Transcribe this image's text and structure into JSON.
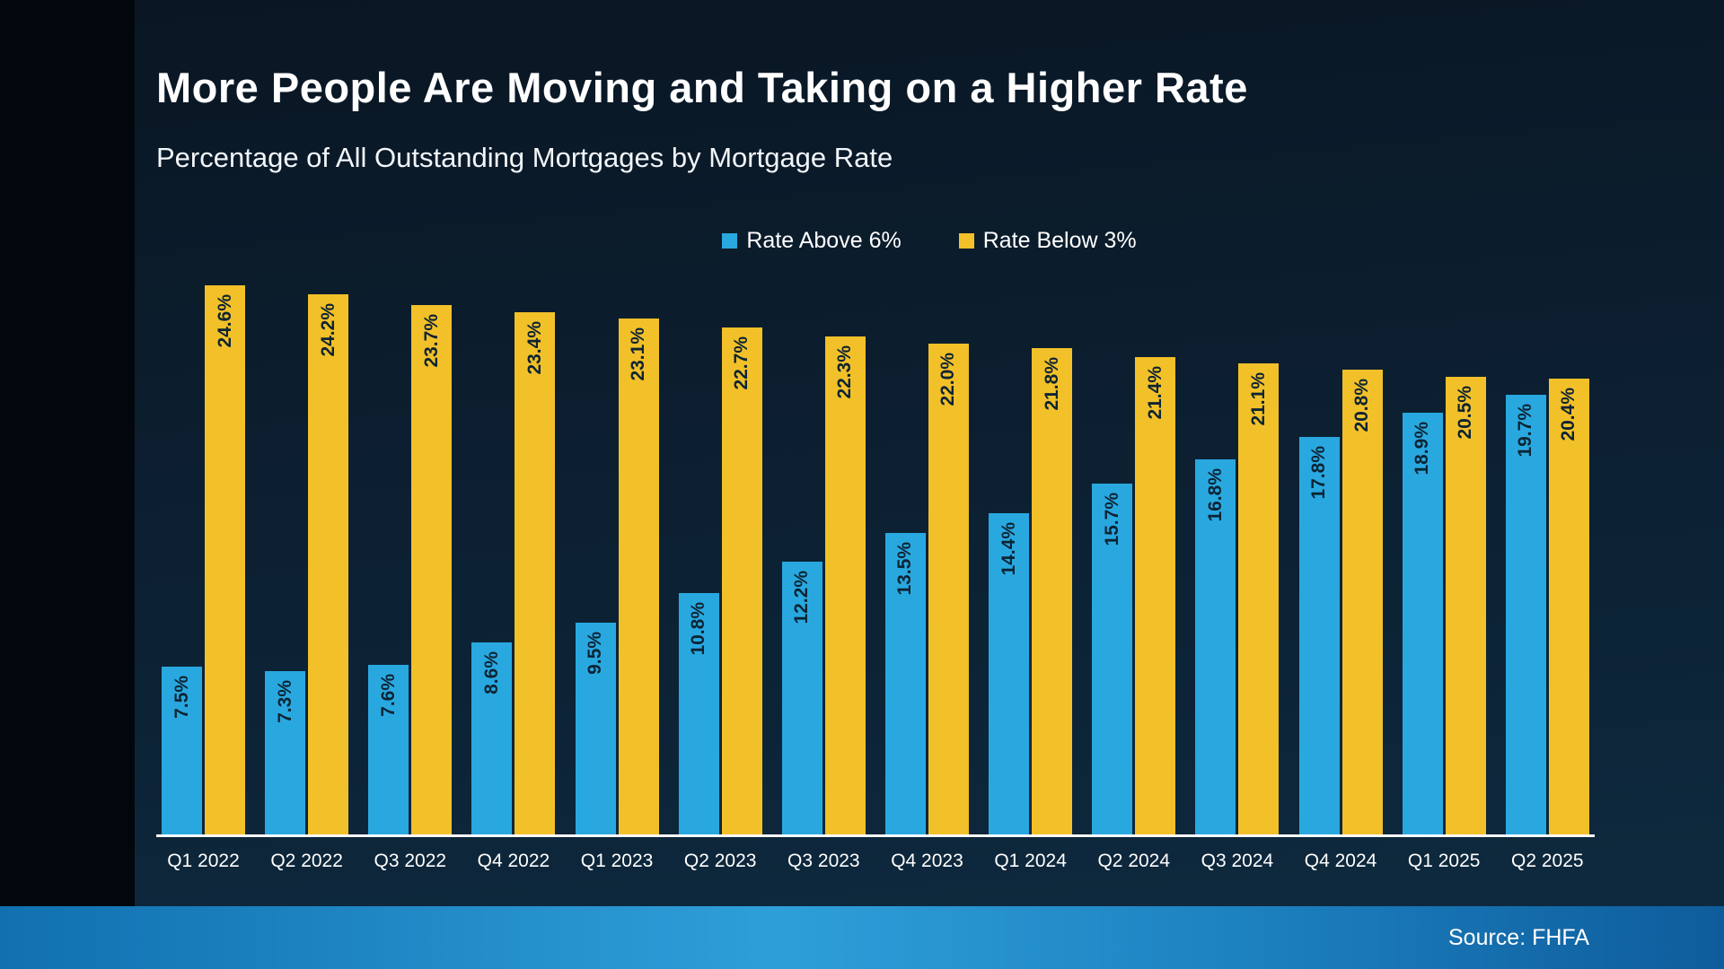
{
  "header": {
    "title": "More People Are Moving and Taking on a Higher Rate",
    "subtitle": "Percentage of All Outstanding Mortgages by Mortgage Rate"
  },
  "footer": {
    "source": "Source: FHFA"
  },
  "colors": {
    "rate_above_6": "#29a8e0",
    "rate_below_3": "#f2c029",
    "bar_value_text": "#0d2433",
    "background_top": "#0a1623",
    "background_bottom": "#0e2a40",
    "footer_band_left": "#1170b0",
    "footer_band_right": "#0e5c9c",
    "axis_line": "#ffffff"
  },
  "chart_data": {
    "type": "bar",
    "title": "More People Are Moving and Taking on a Higher Rate",
    "subtitle": "Percentage of All Outstanding Mortgages by Mortgage Rate",
    "categories": [
      "Q1 2022",
      "Q2 2022",
      "Q3 2022",
      "Q4 2022",
      "Q1 2023",
      "Q2 2023",
      "Q3 2023",
      "Q4 2023",
      "Q1 2024",
      "Q2 2024",
      "Q3 2024",
      "Q4 2024",
      "Q1 2025",
      "Q2 2025"
    ],
    "series": [
      {
        "name": "Rate Above 6%",
        "color": "#29a8e0",
        "values": [
          7.5,
          7.3,
          7.6,
          8.6,
          9.5,
          10.8,
          12.2,
          13.5,
          14.4,
          15.7,
          16.8,
          17.8,
          18.9,
          19.7
        ]
      },
      {
        "name": "Rate Below 3%",
        "color": "#f2c029",
        "values": [
          24.6,
          24.2,
          23.7,
          23.4,
          23.1,
          22.7,
          22.3,
          22.0,
          21.8,
          21.4,
          21.1,
          20.8,
          20.5,
          20.4
        ]
      }
    ],
    "value_suffix": "%",
    "value_decimals": 1,
    "data_label_rotation": -90,
    "xlabel": "",
    "ylabel": "",
    "ylim": [
      0,
      25.6
    ],
    "grid": false,
    "legend_position": "top"
  }
}
